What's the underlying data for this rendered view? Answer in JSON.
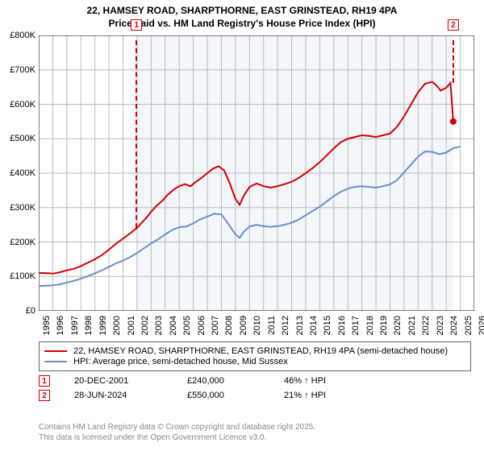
{
  "title_line1": "22, HAMSEY ROAD, SHARPTHORNE, EAST GRINSTEAD, RH19 4PA",
  "title_line2": "Price paid vs. HM Land Registry's House Price Index (HPI)",
  "chart": {
    "type": "line",
    "background_color": "#ffffff",
    "plot_shade_color": "#f3f6fb",
    "plot_shade_xstart": 2001.97,
    "plot_shade_xend": 2024.5,
    "grid_color": "#bbbbbb",
    "axis_color": "#000000",
    "xlim": [
      1995,
      2026
    ],
    "ylim": [
      0,
      800000
    ],
    "ytick_step": 100000,
    "ytick_prefix": "£",
    "ytick_suffixes": {
      "thousand": "K"
    },
    "xtick_step": 1,
    "xtick_rotation": -90,
    "label_fontsize": 11,
    "series": [
      {
        "name": "property",
        "label": "22, HAMSEY ROAD, SHARPTHORNE, EAST GRINSTEAD, RH19 4PA (semi-detached house)",
        "color": "#d40000",
        "line_width": 2,
        "end_marker": {
          "x": 2024.5,
          "y": 550000,
          "radius": 4
        },
        "points": [
          [
            1995.0,
            110000
          ],
          [
            1995.5,
            110000
          ],
          [
            1996.0,
            108000
          ],
          [
            1996.5,
            112000
          ],
          [
            1997.0,
            118000
          ],
          [
            1997.5,
            122000
          ],
          [
            1998.0,
            130000
          ],
          [
            1998.5,
            140000
          ],
          [
            1999.0,
            150000
          ],
          [
            1999.5,
            162000
          ],
          [
            2000.0,
            178000
          ],
          [
            2000.5,
            195000
          ],
          [
            2001.0,
            210000
          ],
          [
            2001.5,
            225000
          ],
          [
            2001.97,
            240000
          ],
          [
            2002.3,
            255000
          ],
          [
            2002.7,
            272000
          ],
          [
            2003.0,
            288000
          ],
          [
            2003.4,
            306000
          ],
          [
            2003.8,
            320000
          ],
          [
            2004.2,
            338000
          ],
          [
            2004.6,
            352000
          ],
          [
            2005.0,
            362000
          ],
          [
            2005.4,
            368000
          ],
          [
            2005.8,
            362000
          ],
          [
            2006.2,
            375000
          ],
          [
            2006.6,
            387000
          ],
          [
            2007.0,
            400000
          ],
          [
            2007.4,
            413000
          ],
          [
            2007.8,
            420000
          ],
          [
            2008.2,
            408000
          ],
          [
            2008.6,
            370000
          ],
          [
            2009.0,
            325000
          ],
          [
            2009.3,
            308000
          ],
          [
            2009.6,
            335000
          ],
          [
            2010.0,
            360000
          ],
          [
            2010.5,
            370000
          ],
          [
            2011.0,
            362000
          ],
          [
            2011.5,
            358000
          ],
          [
            2012.0,
            362000
          ],
          [
            2012.5,
            368000
          ],
          [
            2013.0,
            375000
          ],
          [
            2013.5,
            386000
          ],
          [
            2014.0,
            400000
          ],
          [
            2014.5,
            415000
          ],
          [
            2015.0,
            432000
          ],
          [
            2015.5,
            452000
          ],
          [
            2016.0,
            472000
          ],
          [
            2016.5,
            490000
          ],
          [
            2017.0,
            500000
          ],
          [
            2017.5,
            505000
          ],
          [
            2018.0,
            510000
          ],
          [
            2018.5,
            508000
          ],
          [
            2019.0,
            505000
          ],
          [
            2019.5,
            510000
          ],
          [
            2020.0,
            515000
          ],
          [
            2020.5,
            535000
          ],
          [
            2021.0,
            565000
          ],
          [
            2021.5,
            600000
          ],
          [
            2022.0,
            635000
          ],
          [
            2022.5,
            660000
          ],
          [
            2023.0,
            665000
          ],
          [
            2023.3,
            655000
          ],
          [
            2023.6,
            640000
          ],
          [
            2024.0,
            648000
          ],
          [
            2024.3,
            662000
          ],
          [
            2024.5,
            550000
          ]
        ]
      },
      {
        "name": "hpi",
        "label": "HPI: Average price, semi-detached house, Mid Sussex",
        "color": "#6a8fc8",
        "line_width": 2,
        "points": [
          [
            1995.0,
            72000
          ],
          [
            1995.5,
            73000
          ],
          [
            1996.0,
            74000
          ],
          [
            1996.5,
            77000
          ],
          [
            1997.0,
            82000
          ],
          [
            1997.5,
            87000
          ],
          [
            1998.0,
            94000
          ],
          [
            1998.5,
            101000
          ],
          [
            1999.0,
            109000
          ],
          [
            1999.5,
            118000
          ],
          [
            2000.0,
            128000
          ],
          [
            2000.5,
            138000
          ],
          [
            2001.0,
            146000
          ],
          [
            2001.5,
            156000
          ],
          [
            2002.0,
            168000
          ],
          [
            2002.5,
            182000
          ],
          [
            2003.0,
            196000
          ],
          [
            2003.5,
            208000
          ],
          [
            2004.0,
            222000
          ],
          [
            2004.5,
            235000
          ],
          [
            2005.0,
            243000
          ],
          [
            2005.5,
            245000
          ],
          [
            2006.0,
            254000
          ],
          [
            2006.5,
            266000
          ],
          [
            2007.0,
            274000
          ],
          [
            2007.5,
            282000
          ],
          [
            2008.0,
            280000
          ],
          [
            2008.5,
            252000
          ],
          [
            2009.0,
            222000
          ],
          [
            2009.3,
            212000
          ],
          [
            2009.6,
            230000
          ],
          [
            2010.0,
            245000
          ],
          [
            2010.5,
            250000
          ],
          [
            2011.0,
            246000
          ],
          [
            2011.5,
            244000
          ],
          [
            2012.0,
            246000
          ],
          [
            2012.5,
            250000
          ],
          [
            2013.0,
            256000
          ],
          [
            2013.5,
            265000
          ],
          [
            2014.0,
            278000
          ],
          [
            2014.5,
            290000
          ],
          [
            2015.0,
            303000
          ],
          [
            2015.5,
            318000
          ],
          [
            2016.0,
            333000
          ],
          [
            2016.5,
            346000
          ],
          [
            2017.0,
            355000
          ],
          [
            2017.5,
            360000
          ],
          [
            2018.0,
            362000
          ],
          [
            2018.5,
            360000
          ],
          [
            2019.0,
            358000
          ],
          [
            2019.5,
            362000
          ],
          [
            2020.0,
            367000
          ],
          [
            2020.5,
            380000
          ],
          [
            2021.0,
            402000
          ],
          [
            2021.5,
            425000
          ],
          [
            2022.0,
            448000
          ],
          [
            2022.5,
            463000
          ],
          [
            2023.0,
            462000
          ],
          [
            2023.5,
            455000
          ],
          [
            2024.0,
            460000
          ],
          [
            2024.5,
            472000
          ],
          [
            2025.0,
            478000
          ]
        ]
      }
    ],
    "markers": [
      {
        "id": "1",
        "x": 2001.97,
        "y_from": 240000,
        "color": "#d40000",
        "date": "20-DEC-2001",
        "price": "£240,000",
        "delta": "46% ↑ HPI"
      },
      {
        "id": "2",
        "x": 2024.5,
        "y_from": 662000,
        "color": "#d40000",
        "date": "28-JUN-2024",
        "price": "£550,000",
        "delta": "21% ↑ HPI"
      }
    ]
  },
  "legend": {
    "border_color": "#666666"
  },
  "footer_line1": "Contains HM Land Registry data © Crown copyright and database right 2025.",
  "footer_line2": "This data is licensed under the Open Government Licence v3.0."
}
